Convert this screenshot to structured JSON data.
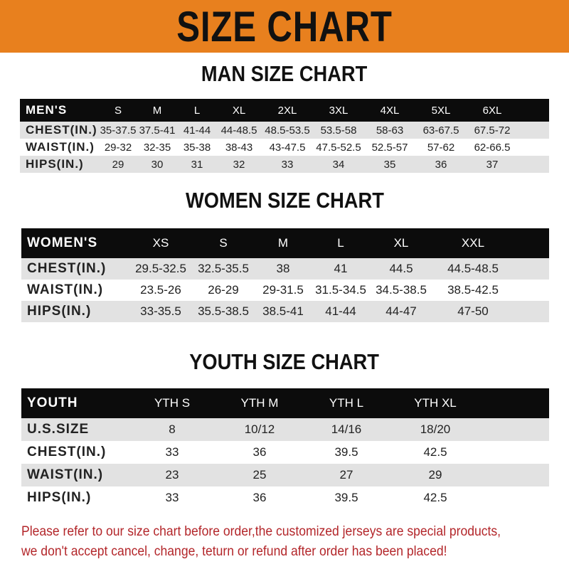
{
  "banner": {
    "title": "SIZE CHART",
    "color": "#e8801e"
  },
  "men": {
    "title": "MAN SIZE CHART",
    "header": [
      "MEN'S",
      "S",
      "M",
      "L",
      "XL",
      "2XL",
      "3XL",
      "4XL",
      "5XL",
      "6XL"
    ],
    "rows": [
      [
        "CHEST(IN.)",
        "35-37.5",
        "37.5-41",
        "41-44",
        "44-48.5",
        "48.5-53.5",
        "53.5-58",
        "58-63",
        "63-67.5",
        "67.5-72"
      ],
      [
        "WAIST(IN.)",
        "29-32",
        "32-35",
        "35-38",
        "38-43",
        "43-47.5",
        "47.5-52.5",
        "52.5-57",
        "57-62",
        "62-66.5"
      ],
      [
        "HIPS(IN.)",
        "29",
        "30",
        "31",
        "32",
        "33",
        "34",
        "35",
        "36",
        "37"
      ]
    ]
  },
  "women": {
    "title": "WOMEN SIZE CHART",
    "header": [
      "WOMEN'S",
      "XS",
      "S",
      "M",
      "L",
      "XL",
      "XXL"
    ],
    "rows": [
      [
        "CHEST(IN.)",
        "29.5-32.5",
        "32.5-35.5",
        "38",
        "41",
        "44.5",
        "44.5-48.5"
      ],
      [
        "WAIST(IN.)",
        "23.5-26",
        "26-29",
        "29-31.5",
        "31.5-34.5",
        "34.5-38.5",
        "38.5-42.5"
      ],
      [
        "HIPS(IN.)",
        "33-35.5",
        "35.5-38.5",
        "38.5-41",
        "41-44",
        "44-47",
        "47-50"
      ]
    ]
  },
  "youth": {
    "title": "YOUTH SIZE CHART",
    "header": [
      "YOUTH",
      "YTH S",
      "YTH M",
      "YTH L",
      "YTH XL"
    ],
    "rows": [
      [
        "U.S.SIZE",
        "8",
        "10/12",
        "14/16",
        "18/20"
      ],
      [
        "CHEST(IN.)",
        "33",
        "36",
        "39.5",
        "42.5"
      ],
      [
        "WAIST(IN.)",
        "23",
        "25",
        "27",
        "29"
      ],
      [
        "HIPS(IN.)",
        "33",
        "36",
        "39.5",
        "42.5"
      ]
    ]
  },
  "footer": {
    "line1": "Please refer to our size chart before order,the customized jerseys are special products,",
    "line2": "we don't accept cancel, change, teturn or refund after order has been placed!",
    "color": "#b3262a"
  }
}
